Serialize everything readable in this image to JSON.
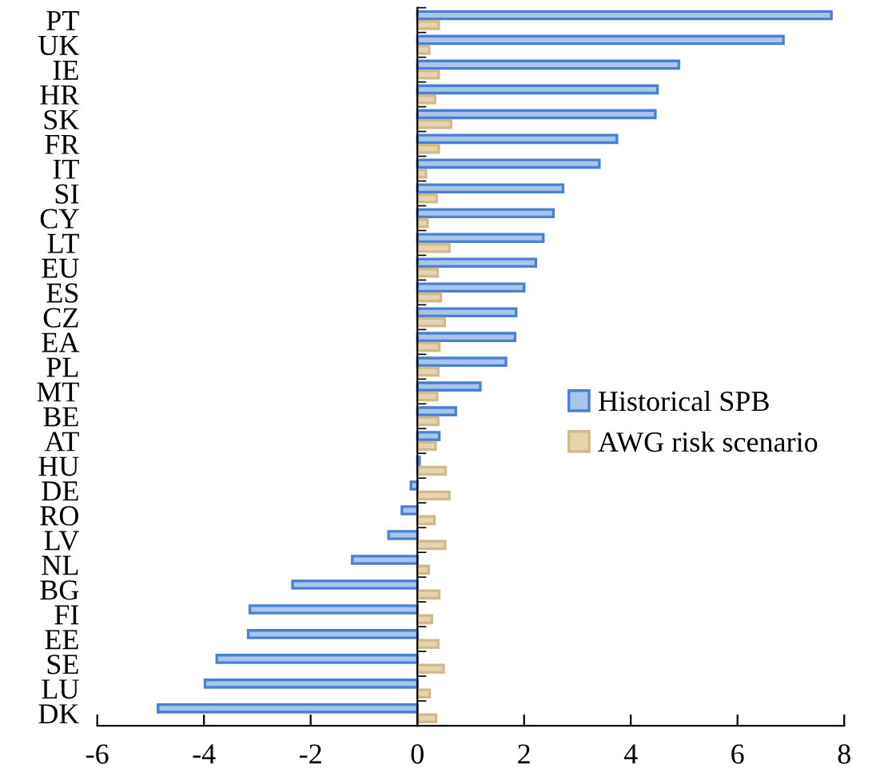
{
  "chart_data": {
    "type": "bar",
    "orientation": "horizontal",
    "categories": [
      "PT",
      "UK",
      "IE",
      "HR",
      "SK",
      "FR",
      "IT",
      "SI",
      "CY",
      "LT",
      "EU",
      "ES",
      "CZ",
      "EA",
      "PL",
      "MT",
      "BE",
      "AT",
      "HU",
      "DE",
      "RO",
      "LV",
      "NL",
      "BG",
      "FI",
      "EE",
      "SE",
      "LU",
      "DK"
    ],
    "series": [
      {
        "name": "Historical SPB",
        "color": "#aac5eb",
        "values": [
          7.76,
          6.86,
          4.9,
          4.5,
          4.46,
          3.74,
          3.41,
          2.73,
          2.55,
          2.36,
          2.22,
          2.0,
          1.85,
          1.83,
          1.66,
          1.18,
          0.72,
          0.41,
          0.04,
          -0.12,
          -0.29,
          -0.54,
          -1.22,
          -2.34,
          -3.14,
          -3.17,
          -3.76,
          -3.98,
          -4.86
        ]
      },
      {
        "name": "AWG risk scenario",
        "color": "#e6d4ae",
        "values": [
          0.4,
          0.22,
          0.4,
          0.33,
          0.63,
          0.4,
          0.16,
          0.36,
          0.19,
          0.6,
          0.38,
          0.44,
          0.51,
          0.41,
          0.39,
          0.37,
          0.39,
          0.34,
          0.53,
          0.6,
          0.32,
          0.52,
          0.21,
          0.41,
          0.27,
          0.39,
          0.49,
          0.23,
          0.35
        ]
      }
    ],
    "xlim": [
      -6,
      8
    ],
    "xticks": [
      -6,
      -4,
      -2,
      0,
      2,
      4,
      6,
      8
    ],
    "legend": "right"
  }
}
